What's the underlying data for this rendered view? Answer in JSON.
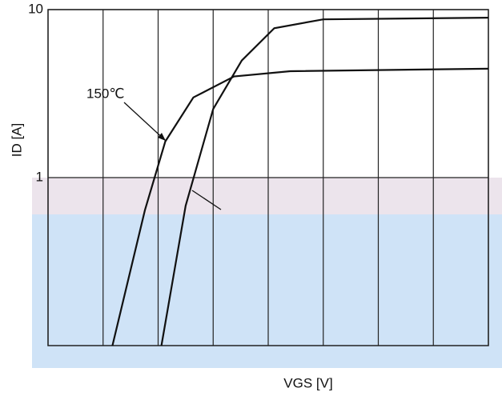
{
  "chart_data": {
    "type": "line",
    "xlabel": "VGS [V]",
    "ylabel": "ID [A]",
    "annotation": "150℃",
    "log_y": true,
    "grid": true,
    "xlim": [
      0,
      8
    ],
    "xticks": [
      0,
      1,
      2,
      3,
      4,
      5,
      6,
      7,
      8
    ],
    "ylim": [
      0.1,
      10
    ],
    "yticks": [
      1,
      10
    ],
    "series": [
      {
        "color": "#111111",
        "x": [
          1.17,
          1.76,
          2.13,
          2.64,
          3.38,
          4.4,
          8
        ],
        "values": [
          0.1,
          0.64,
          1.64,
          3.0,
          4.0,
          4.3,
          4.45
        ]
      },
      {
        "color": "#111111",
        "x": [
          2.06,
          2.5,
          3.0,
          3.52,
          4.11,
          5.0,
          8
        ],
        "values": [
          0.1,
          0.68,
          2.56,
          4.98,
          7.75,
          8.75,
          8.95
        ]
      }
    ]
  }
}
